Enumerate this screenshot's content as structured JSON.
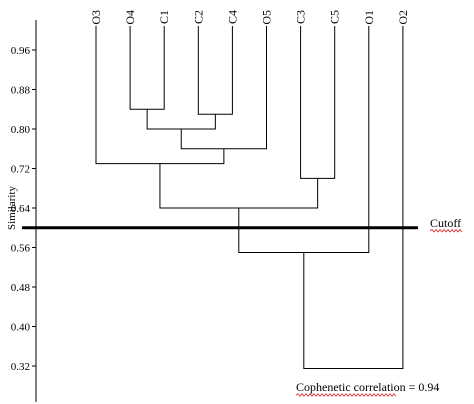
{
  "chart_data": {
    "type": "dendrogram",
    "ylabel": "Similarity",
    "ylim": [
      0.3,
      1.0
    ],
    "y_ticks": [
      "0.96",
      "0.88",
      "0.80",
      "0.72",
      "0.64",
      "0.56",
      "0.48",
      "0.40",
      "0.32"
    ],
    "leaves": [
      "O3",
      "O4",
      "C1",
      "C2",
      "C4",
      "O5",
      "C3",
      "C5",
      "O1",
      "O2"
    ],
    "merges": [
      {
        "left": "leaf:1",
        "right": "leaf:2",
        "height": 0.84
      },
      {
        "left": "leaf:3",
        "right": "leaf:4",
        "height": 0.83
      },
      {
        "left": "node:0",
        "right": "node:1",
        "height": 0.8
      },
      {
        "left": "node:2",
        "right": "leaf:5",
        "height": 0.76
      },
      {
        "left": "leaf:0",
        "right": "node:3",
        "height": 0.73
      },
      {
        "left": "leaf:6",
        "right": "leaf:7",
        "height": 0.7
      },
      {
        "left": "node:4",
        "right": "node:5",
        "height": 0.64
      },
      {
        "left": "node:6",
        "right": "leaf:8",
        "height": 0.55
      },
      {
        "left": "node:7",
        "right": "leaf:9",
        "height": 0.315
      }
    ],
    "cutoff": {
      "label": "Cutoff",
      "value": 0.6
    },
    "annotation": "Cophenetic correlation = 0.94"
  }
}
